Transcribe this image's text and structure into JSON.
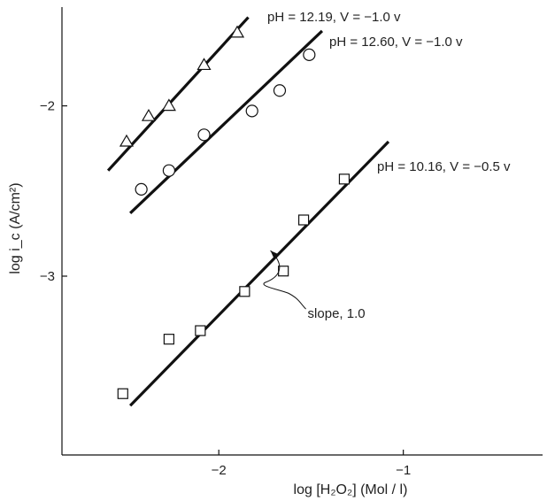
{
  "chart_data": {
    "type": "scatter",
    "xlabel": "log [H₂O₂]   (Mol / l)",
    "ylabel": "log i_c  (A/cm²)",
    "xlim": [
      -2.85,
      -0.25
    ],
    "ylim": [
      -4.05,
      -1.42
    ],
    "x_ticks": [
      -2,
      -1
    ],
    "y_ticks": [
      -2,
      -3
    ],
    "grid": false,
    "series": [
      {
        "name": "pH = 12.19,  V = −1.0 v",
        "marker": "triangle",
        "points": [
          [
            -2.5,
            -2.21
          ],
          [
            -2.38,
            -2.06
          ],
          [
            -2.27,
            -2.0
          ],
          [
            -2.08,
            -1.76
          ],
          [
            -1.9,
            -1.57
          ]
        ],
        "fit": [
          [
            -2.6,
            -2.38
          ],
          [
            -1.84,
            -1.48
          ]
        ]
      },
      {
        "name": "pH = 12.60,  V = −1.0 v",
        "marker": "circle",
        "points": [
          [
            -2.42,
            -2.49
          ],
          [
            -2.27,
            -2.38
          ],
          [
            -2.08,
            -2.17
          ],
          [
            -1.82,
            -2.03
          ],
          [
            -1.67,
            -1.91
          ],
          [
            -1.51,
            -1.7
          ]
        ],
        "fit": [
          [
            -2.48,
            -2.63
          ],
          [
            -1.44,
            -1.56
          ]
        ]
      },
      {
        "name": "pH = 10.16,  V = −0.5 v",
        "marker": "square",
        "points": [
          [
            -2.52,
            -3.69
          ],
          [
            -2.27,
            -3.37
          ],
          [
            -2.1,
            -3.32
          ],
          [
            -1.86,
            -3.09
          ],
          [
            -1.65,
            -2.97
          ],
          [
            -1.54,
            -2.67
          ],
          [
            -1.32,
            -2.43
          ]
        ],
        "fit": [
          [
            -2.48,
            -3.76
          ],
          [
            -1.08,
            -2.21
          ]
        ]
      }
    ],
    "annotations": [
      {
        "text": "slope, 1.0",
        "target": [
          -1.72,
          -2.85
        ]
      }
    ]
  }
}
